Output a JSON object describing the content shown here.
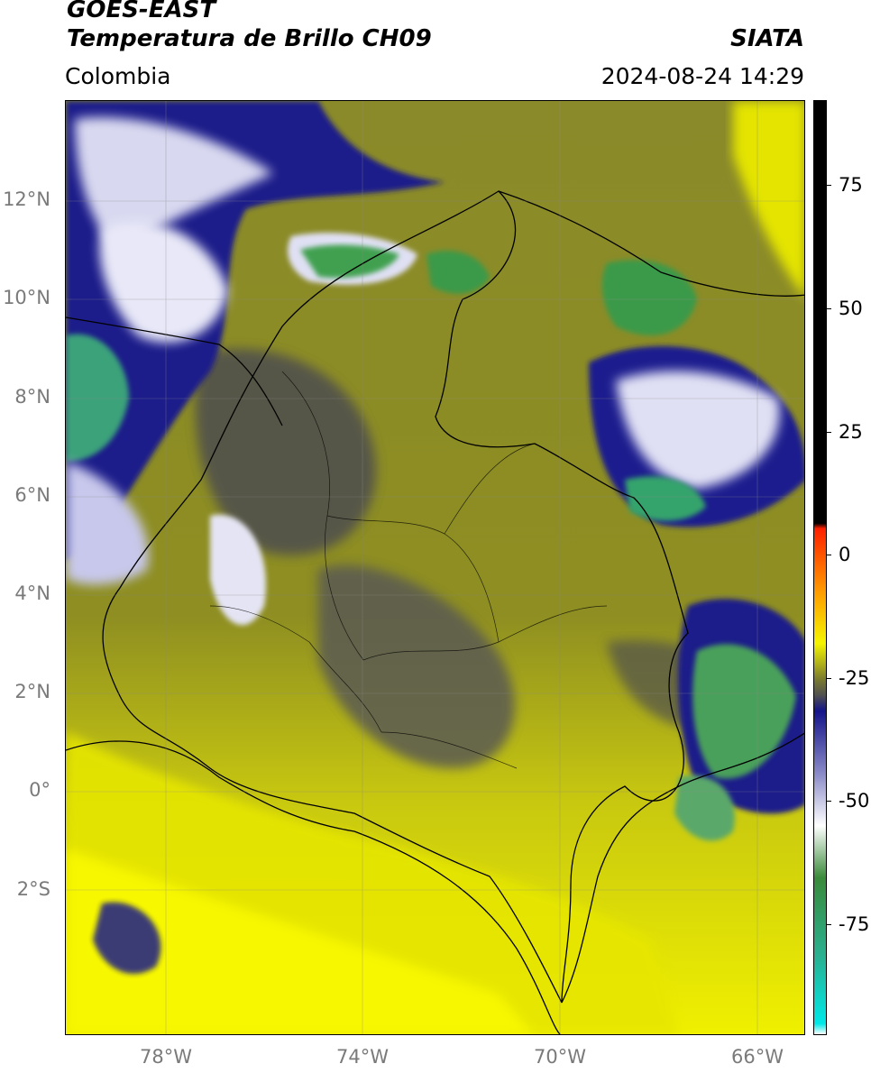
{
  "header": {
    "line1": "GOES-EAST",
    "line2": "Temperatura de Brillo CH09",
    "region": "Colombia",
    "brand": "SIATA",
    "datetime": "2024-08-24 14:29"
  },
  "map": {
    "lat_labels": [
      "12°N",
      "10°N",
      "8°N",
      "6°N",
      "4°N",
      "2°N",
      "0°",
      "2°S"
    ],
    "lon_labels": [
      "78°W",
      "74°W",
      "70°W",
      "66°W"
    ],
    "colors": {
      "warm_yellow": "#f5f500",
      "olive": "#9a9a20",
      "gray": "#5a5a52",
      "navy": "#1a1a8a",
      "white": "#ffffff",
      "green": "#3a9a4a",
      "teal": "#20c0b0"
    }
  },
  "colorbar": {
    "ticks": [
      "75",
      "50",
      "25",
      "0",
      "-25",
      "-50",
      "-75"
    ],
    "stops": [
      {
        "value": 89,
        "color": "#000000"
      },
      {
        "value": 8,
        "color": "#000000"
      },
      {
        "value": 7,
        "color": "#ff2000"
      },
      {
        "value": -5,
        "color": "#ff9a00"
      },
      {
        "value": -15,
        "color": "#f5f500"
      },
      {
        "value": -22,
        "color": "#7a7a30"
      },
      {
        "value": -25,
        "color": "#505050"
      },
      {
        "value": -28,
        "color": "#14148a"
      },
      {
        "value": -40,
        "color": "#8a8ac8"
      },
      {
        "value": -50,
        "color": "#ffffff"
      },
      {
        "value": -60,
        "color": "#3a8a3a"
      },
      {
        "value": -75,
        "color": "#2ab090"
      },
      {
        "value": -88,
        "color": "#00e8e8"
      },
      {
        "value": -90,
        "color": "#ffffff"
      }
    ]
  }
}
